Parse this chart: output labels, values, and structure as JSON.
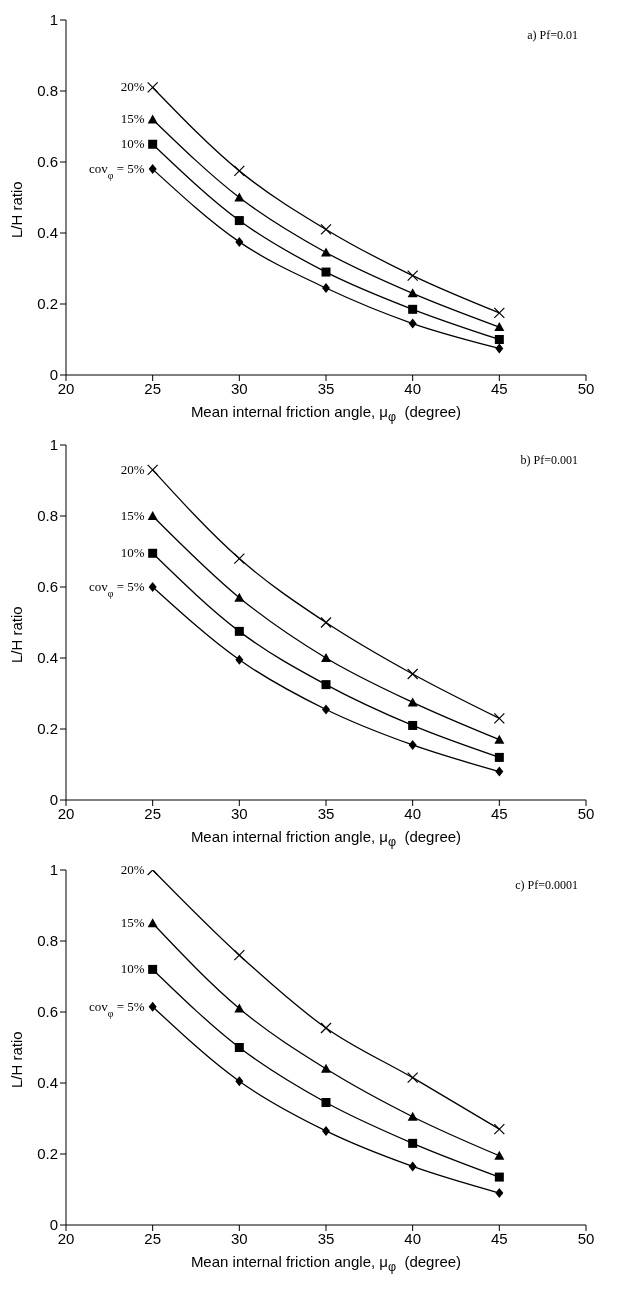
{
  "chart_data": [
    {
      "type": "line",
      "annotations": [
        "a) Pf=0.01"
      ],
      "xlabel": "Mean internal friction angle, μ$_{φ}$  (degree)",
      "ylabel": "L/H ratio",
      "x": [
        25,
        30,
        35,
        40,
        45
      ],
      "xlim": [
        20,
        50
      ],
      "xticks": [
        20,
        25,
        30,
        35,
        40,
        45,
        50
      ],
      "ylim": [
        0,
        1
      ],
      "yticks": [
        0,
        0.2,
        0.4,
        0.6,
        0.8,
        1
      ],
      "grid": false,
      "line_style": "solid",
      "series": [
        {
          "name": "20%",
          "color": "#000000",
          "marker": "cross",
          "values": [
            0.81,
            0.575,
            0.41,
            0.28,
            0.175
          ]
        },
        {
          "name": "15%",
          "color": "#000000",
          "marker": "triangle",
          "values": [
            0.72,
            0.5,
            0.345,
            0.23,
            0.135
          ]
        },
        {
          "name": "10%",
          "color": "#000000",
          "marker": "square",
          "values": [
            0.65,
            0.435,
            0.29,
            0.185,
            0.1
          ]
        },
        {
          "name": "cov$_{φ}$ = 5%",
          "color": "#000000",
          "marker": "diamond",
          "values": [
            0.58,
            0.375,
            0.245,
            0.145,
            0.075
          ]
        }
      ]
    },
    {
      "type": "line",
      "annotations": [
        "b) Pf=0.001"
      ],
      "xlabel": "Mean internal friction angle, μ$_{φ}$  (degree)",
      "ylabel": "L/H ratio",
      "x": [
        25,
        30,
        35,
        40,
        45
      ],
      "xlim": [
        20,
        50
      ],
      "xticks": [
        20,
        25,
        30,
        35,
        40,
        45,
        50
      ],
      "ylim": [
        0,
        1
      ],
      "yticks": [
        0,
        0.2,
        0.4,
        0.6,
        0.8,
        1
      ],
      "grid": false,
      "line_style": "solid",
      "series": [
        {
          "name": "20%",
          "color": "#000000",
          "marker": "cross",
          "values": [
            0.93,
            0.68,
            0.5,
            0.355,
            0.23
          ]
        },
        {
          "name": "15%",
          "color": "#000000",
          "marker": "triangle",
          "values": [
            0.8,
            0.57,
            0.4,
            0.275,
            0.17
          ]
        },
        {
          "name": "10%",
          "color": "#000000",
          "marker": "square",
          "values": [
            0.695,
            0.475,
            0.325,
            0.21,
            0.12
          ]
        },
        {
          "name": "cov$_{φ}$ = 5%",
          "color": "#000000",
          "marker": "diamond",
          "values": [
            0.6,
            0.395,
            0.255,
            0.155,
            0.08
          ]
        }
      ]
    },
    {
      "type": "line",
      "annotations": [
        "c) Pf=0.0001"
      ],
      "xlabel": "Mean internal friction angle, μ$_{φ}$  (degree)",
      "ylabel": "L/H ratio",
      "x": [
        25,
        30,
        35,
        40,
        45
      ],
      "xlim": [
        20,
        50
      ],
      "xticks": [
        20,
        25,
        30,
        35,
        40,
        45,
        50
      ],
      "ylim": [
        0,
        1
      ],
      "yticks": [
        0,
        0.2,
        0.4,
        0.6,
        0.8,
        1
      ],
      "grid": false,
      "line_style": "solid",
      "series": [
        {
          "name": "20%",
          "color": "#000000",
          "marker": "cross",
          "values": [
            1.0,
            0.76,
            0.555,
            0.415,
            0.27
          ]
        },
        {
          "name": "15%",
          "color": "#000000",
          "marker": "triangle",
          "values": [
            0.85,
            0.61,
            0.44,
            0.305,
            0.195
          ]
        },
        {
          "name": "10%",
          "color": "#000000",
          "marker": "square",
          "values": [
            0.72,
            0.5,
            0.345,
            0.23,
            0.135
          ]
        },
        {
          "name": "cov$_{φ}$ = 5%",
          "color": "#000000",
          "marker": "diamond",
          "values": [
            0.615,
            0.405,
            0.265,
            0.165,
            0.09
          ]
        }
      ]
    }
  ]
}
